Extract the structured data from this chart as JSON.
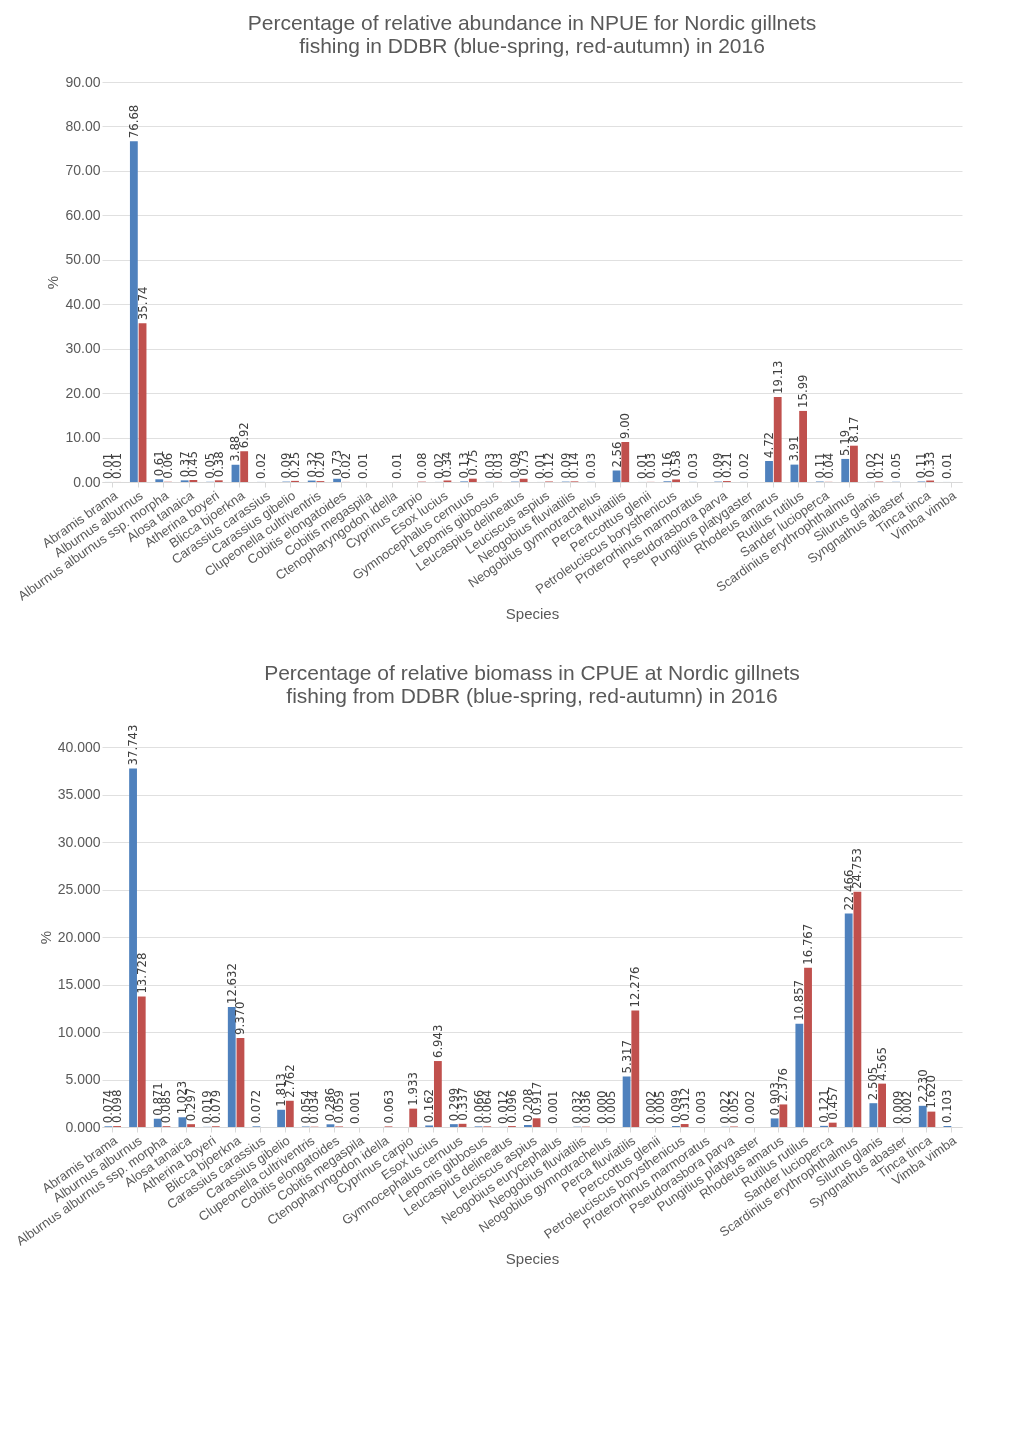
{
  "chart_data": [
    {
      "type": "bar",
      "title": [
        "Percentage of relative abundance in NPUE for Nordic gillnets",
        "fishing in DDBR (blue-spring, red-autumn) in 2016"
      ],
      "xlabel": "Species",
      "ylabel": "%",
      "categories": [
        "Abramis brama",
        "Alburnus alburnus",
        "Alburnus alburnus ssp. morpha",
        "Alosa tanaica",
        "Atherina boyeri",
        "Blicca bjoerkna",
        "Carassius carassius",
        "Carassius gibelio",
        "Clupeonella cultriventris",
        "Cobitis elongatoides",
        "Cobitis megaspila",
        "Ctenopharyngodon idella",
        "Cyprinus carpio",
        "Esox lucius",
        "Gymnocephalus cernuus",
        "Lepomis gibbosus",
        "Leucaspius delineatus",
        "Leuciscus aspius",
        "Neogobius fluviatilis",
        "Neogobius gymnotrachelus",
        "Perca fluviatilis",
        "Perccottus glenii",
        "Petroleuciscus borysthenicus",
        "Proterorhinus marmoratus",
        "Pseudorasbora parva",
        "Pungitius platygaster",
        "Rhodeus amarus",
        "Rutilus rutilus",
        "Sander lucioperca",
        "Scardinius erythrophthalmus",
        "Silurus glanis",
        "Syngnathus abaster",
        "Tinca tinca",
        "Vimba vimba"
      ],
      "series": [
        {
          "color": "#4f81bd",
          "values": [
            0.01,
            76.68,
            0.61,
            0.37,
            0.05,
            3.88,
            0.02,
            0.09,
            0.32,
            0.73,
            0.01,
            null,
            null,
            0.02,
            0.13,
            0.03,
            0.09,
            0.01,
            0.09,
            0.03,
            2.56,
            0.01,
            0.16,
            0.03,
            0.09,
            0.02,
            4.72,
            3.91,
            0.11,
            5.19,
            0.02,
            0.05,
            0.11,
            0.01
          ],
          "value_labels": [
            "0.01",
            "76.68",
            "0.61",
            "0.37",
            "0.05",
            "3.88",
            "0.02",
            "0.09",
            "0.32",
            "0.73",
            "0.01",
            null,
            null,
            "0.02",
            "0.13",
            "0.03",
            "0.09",
            "0.01",
            "0.09",
            "0.03",
            "2.56",
            "0.01",
            "0.16",
            "0.03",
            "0.09",
            "0.02",
            "4.72",
            "3.91",
            "0.11",
            "5.19",
            "0.02",
            "0.05",
            "0.11",
            "0.01"
          ]
        },
        {
          "color": "#c0504d",
          "values": [
            0.01,
            35.74,
            0.06,
            0.45,
            0.38,
            6.92,
            null,
            0.25,
            0.2,
            0.02,
            null,
            0.01,
            0.08,
            0.34,
            0.75,
            0.03,
            0.73,
            0.12,
            0.14,
            null,
            9.0,
            0.03,
            0.58,
            null,
            0.21,
            null,
            19.13,
            15.99,
            0.04,
            8.17,
            0.12,
            null,
            0.33,
            null
          ],
          "value_labels": [
            "0.01",
            "35.74",
            "0.06",
            "0.45",
            "0.38",
            "6.92",
            null,
            "0.25",
            "0.20",
            "0.02",
            null,
            "0.01",
            "0.08",
            "0.34",
            "0.75",
            "0.03",
            "0.73",
            "0.12",
            "0.14",
            null,
            "9.00",
            "0.03",
            "0.58",
            null,
            "0.21",
            null,
            "19.13",
            "15.99",
            "0.04",
            "8.17",
            "0.12",
            null,
            "0.33",
            null
          ]
        }
      ],
      "ylim": [
        0,
        90
      ],
      "yticks": [
        {
          "value": 0,
          "label": "0.00"
        },
        {
          "value": 10,
          "label": "10.00"
        },
        {
          "value": 20,
          "label": "20.00"
        },
        {
          "value": 30,
          "label": "30.00"
        },
        {
          "value": 40,
          "label": "40.00"
        },
        {
          "value": 50,
          "label": "50.00"
        },
        {
          "value": 60,
          "label": "60.00"
        },
        {
          "value": 70,
          "label": "70.00"
        },
        {
          "value": 80,
          "label": "80.00"
        },
        {
          "value": 90,
          "label": "90.00"
        }
      ],
      "grid": "y"
    },
    {
      "type": "bar",
      "title": [
        "Percentage of relative biomass in CPUE at Nordic gillnets",
        "fishing from DDBR (blue-spring, red-autumn) in 2016"
      ],
      "xlabel": "Species",
      "ylabel": "%",
      "categories": [
        "Abramis brama",
        "Alburnus alburnus",
        "Alburnus alburnus ssp. morpha",
        "Alosa tanaica",
        "Atherina boyeri",
        "Blicca bjoerkna",
        "Carassius carassius",
        "Carassius gibelio",
        "Clupeonella cultriventris",
        "Cobitis elongatoides",
        "Cobitis megaspila",
        "Ctenopharyngodon idella",
        "Cyprinus carpio",
        "Esox lucius",
        "Gymnocephalus cernuus",
        "Lepomis gibbosus",
        "Leucaspius delineatus",
        "Leuciscus aspius",
        "Neogobius eurycephalus",
        "Neogobius fluviatilis",
        "Neogobius gymnotrachelus",
        "Perca fluviatilis",
        "Perccottus glenii",
        "Petroleuciscus borysthenicus",
        "Proterorhinus marmoratus",
        "Pseudorasbora parva",
        "Pungitius platygaster",
        "Rhodeus amarus",
        "Rutilus rutilus",
        "Sander lucioperca",
        "Scardinius erythrophthalmus",
        "Silurus glanis",
        "Syngnathus abaster",
        "Tinca tinca",
        "Vimba vimba"
      ],
      "series": [
        {
          "color": "#4f81bd",
          "values": [
            0.074,
            37.743,
            0.871,
            1.023,
            0.019,
            12.632,
            0.072,
            1.813,
            0.054,
            0.286,
            0.001,
            null,
            null,
            0.162,
            0.299,
            0.066,
            0.012,
            0.208,
            0.001,
            0.032,
            0,
            5.317,
            0.002,
            0.099,
            0.003,
            0.022,
            0.002,
            0.903,
            10.857,
            0.121,
            22.466,
            2.505,
            0.009,
            2.23,
            0.103
          ],
          "value_labels": [
            "0.074",
            "37.743",
            "0.871",
            "1.023",
            "0.019",
            "12.632",
            "0.072",
            "1.813",
            "0.054",
            "0.286",
            "0.001",
            null,
            null,
            "0.162",
            "0.299",
            "0.066",
            "0.012",
            "0.208",
            "0.001",
            "0.032",
            "0.000",
            "5.317",
            "0.002",
            "0.099",
            "0.003",
            "0.022",
            "0.002",
            "0.903",
            "10.857",
            "0.121",
            "22.466",
            "2.505",
            "0.009",
            "2.230",
            "0.103"
          ]
        },
        {
          "color": "#c0504d",
          "values": [
            0.098,
            13.728,
            0.085,
            0.297,
            0.079,
            9.37,
            null,
            2.762,
            0.034,
            0.059,
            null,
            0.063,
            1.933,
            6.943,
            0.337,
            0.064,
            0.096,
            0.917,
            null,
            0.036,
            0.005,
            12.276,
            0.005,
            0.312,
            null,
            0.052,
            null,
            2.376,
            16.767,
            0.457,
            24.753,
            4.565,
            0.002,
            1.62,
            null
          ],
          "value_labels": [
            "0.098",
            "13.728",
            "0.085",
            "0.297",
            "0.079",
            "9.370",
            null,
            "2.762",
            "0.034",
            "0.059",
            null,
            "0.063",
            "1.933",
            "6.943",
            "0.337",
            "0.064",
            "0.096",
            "0.917",
            null,
            "0.036",
            "0.005",
            "12.276",
            "0.005",
            "0.312",
            null,
            "0.052",
            null,
            "2.376",
            "16.767",
            "0.457",
            "24.753",
            "4.565",
            "0.002",
            "1.620",
            null
          ]
        }
      ],
      "ylim": [
        0,
        40
      ],
      "yticks": [
        {
          "value": 0,
          "label": "0.000"
        },
        {
          "value": 5,
          "label": "5.000"
        },
        {
          "value": 10,
          "label": "10.000"
        },
        {
          "value": 15,
          "label": "15.000"
        },
        {
          "value": 20,
          "label": "20.000"
        },
        {
          "value": 25,
          "label": "25.000"
        },
        {
          "value": 30,
          "label": "30.000"
        },
        {
          "value": 35,
          "label": "35.000"
        },
        {
          "value": 40,
          "label": "40.000"
        }
      ],
      "grid": "y"
    }
  ]
}
